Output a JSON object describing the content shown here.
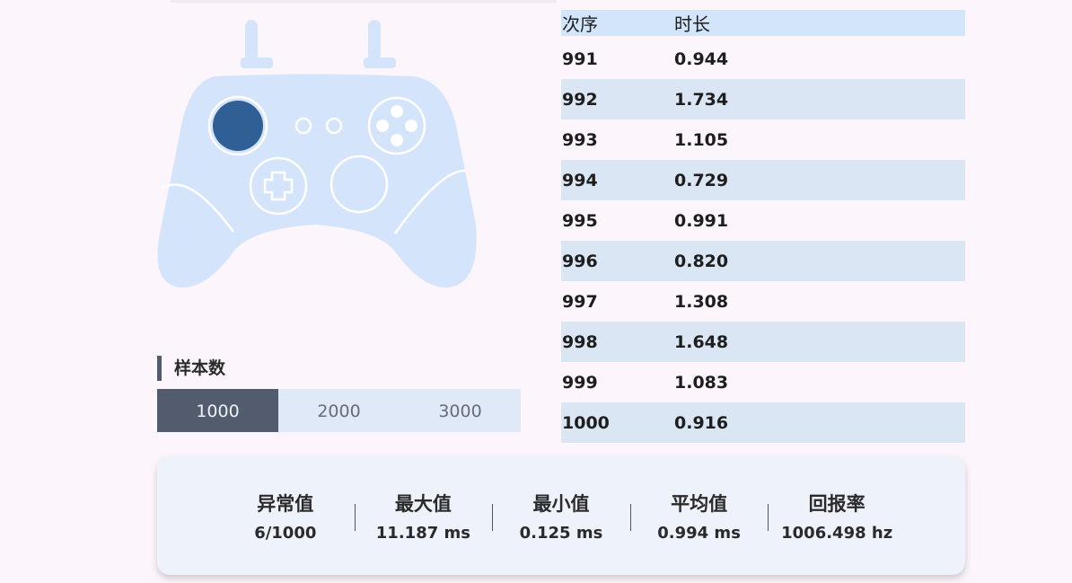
{
  "sample": {
    "title": "样本数",
    "options": [
      "1000",
      "2000",
      "3000"
    ]
  },
  "table": {
    "headers": [
      "次序",
      "时长"
    ],
    "rows": [
      [
        "991",
        "0.944"
      ],
      [
        "992",
        "1.734"
      ],
      [
        "993",
        "1.105"
      ],
      [
        "994",
        "0.729"
      ],
      [
        "995",
        "0.991"
      ],
      [
        "996",
        "0.820"
      ],
      [
        "997",
        "1.308"
      ],
      [
        "998",
        "1.648"
      ],
      [
        "999",
        "1.083"
      ],
      [
        "1000",
        "0.916"
      ]
    ]
  },
  "stats": [
    {
      "label": "异常值",
      "value": "6/1000"
    },
    {
      "label": "最大值",
      "value": "11.187 ms"
    },
    {
      "label": "最小值",
      "value": "0.125 ms"
    },
    {
      "label": "平均值",
      "value": "0.994 ms"
    },
    {
      "label": "回报率",
      "value": "1006.498 hz"
    }
  ]
}
